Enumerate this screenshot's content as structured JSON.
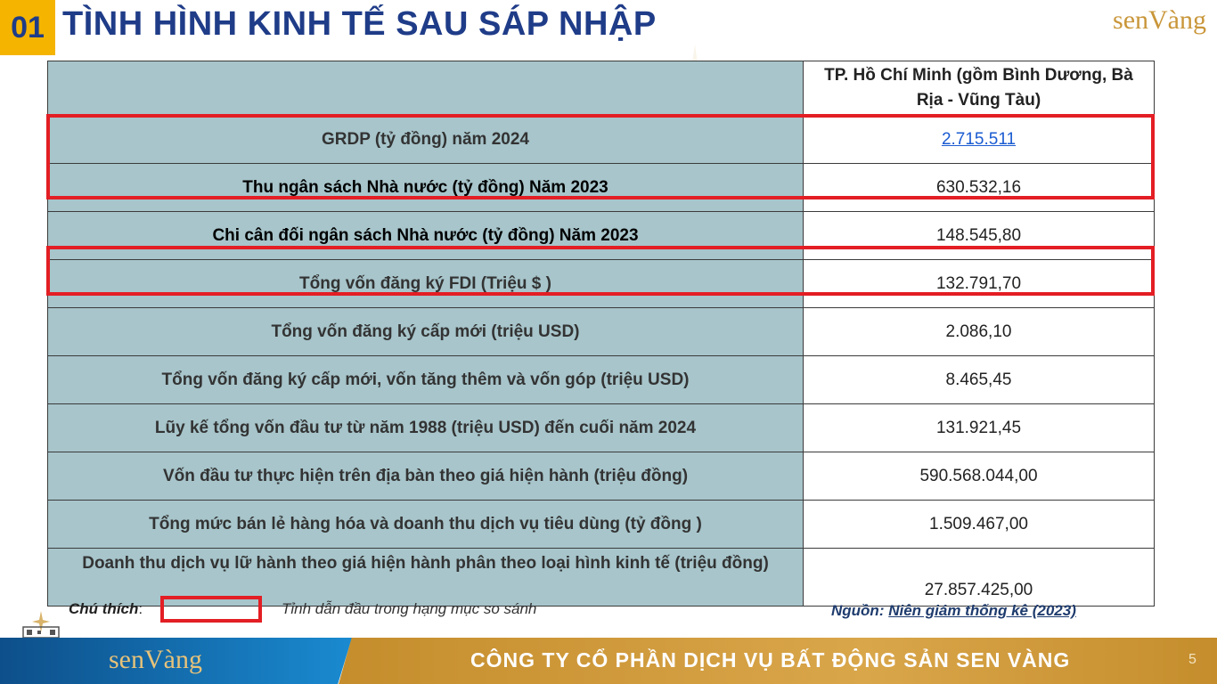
{
  "header": {
    "number": "01",
    "title": "TÌNH HÌNH KINH TẾ SAU SÁP NHẬP",
    "logo_text": "senVàng"
  },
  "table": {
    "column_header": "TP. Hồ Chí Minh (gồm Bình Dương, Bà Rịa - Vũng Tàu)",
    "rows": [
      {
        "label": "GRDP (tỷ đồng) năm 2024",
        "value": "2.715.511",
        "highlighted": true
      },
      {
        "label": "Thu ngân sách Nhà nước (tỷ đồng) Năm 2023",
        "value": "630.532,16",
        "highlighted": true
      },
      {
        "label": "Chi cân đối ngân sách Nhà nước (tỷ đồng) Năm 2023",
        "value": "148.545,80",
        "highlighted": false
      },
      {
        "label": "Tổng vốn đăng ký FDI (Triệu $ )",
        "value": "132.791,70",
        "highlighted": true
      },
      {
        "label": "Tổng vốn đăng ký cấp mới (triệu USD)",
        "value": "2.086,10",
        "highlighted": false
      },
      {
        "label": "Tổng vốn đăng ký cấp mới, vốn tăng thêm và vốn góp (triệu USD)",
        "value": "8.465,45",
        "highlighted": false
      },
      {
        "label": "Lũy kế tổng vốn đầu tư từ năm 1988 (triệu USD) đến cuối năm 2024",
        "value": "131.921,45",
        "highlighted": false
      },
      {
        "label": "Vốn đầu tư thực hiện trên địa bàn theo giá hiện hành (triệu đồng)",
        "value": "590.568.044,00",
        "highlighted": false
      },
      {
        "label": "Tổng mức bán lẻ hàng hóa và doanh thu dịch vụ tiêu dùng (tỷ đồng )",
        "value": "1.509.467,00",
        "highlighted": false
      },
      {
        "label": "Doanh thu dịch vụ lữ hành theo giá hiện hành phân theo loại hình kinh tế (triệu đồng)",
        "value": "27.857.425,00",
        "highlighted": false
      }
    ]
  },
  "legend": {
    "label": "Chú thích",
    "separator": ":",
    "text": "Tỉnh dẫn đầu trong hạng mục so sánh",
    "highlight_color": "#e31e24"
  },
  "source": {
    "prefix": "Nguồn:",
    "link_text": "Niên giám thống kê (2023)"
  },
  "footer": {
    "logo_text": "senVàng",
    "company": "CÔNG TY CỔ PHẦN DỊCH VỤ BẤT ĐỘNG SẢN SEN VÀNG",
    "page_number": "5"
  },
  "colors": {
    "title": "#1f3c88",
    "badge": "#f4b400",
    "label_cell": "#a7c5cb",
    "gold": "#c9963a",
    "footer_blue": "#0d4f8a"
  }
}
